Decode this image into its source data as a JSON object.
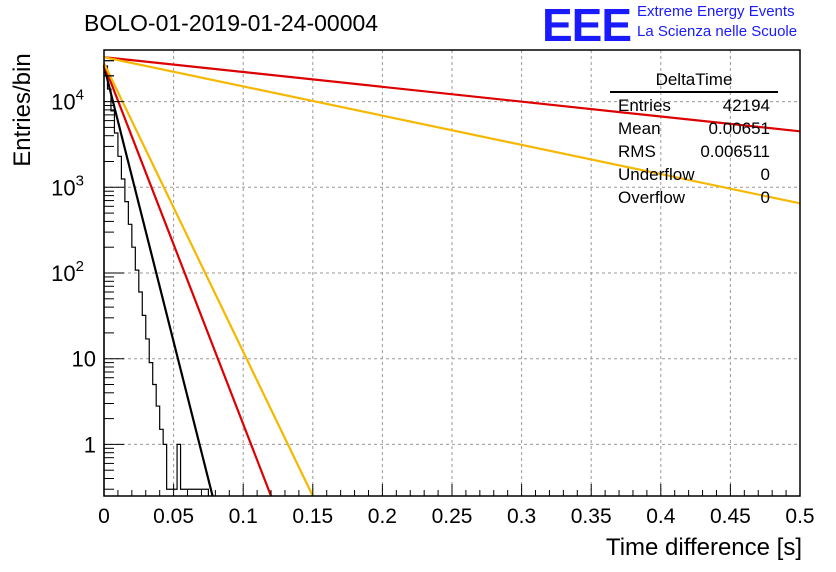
{
  "header": {
    "title": "BOLO-01-2019-01-24-00004",
    "logo_text": "EEE",
    "logo_line1": "Extreme Energy Events",
    "logo_line2": "La Scienza nelle Scuole"
  },
  "stats_box": {
    "title": "DeltaTime",
    "rows": [
      {
        "label": "Entries",
        "value": "42194"
      },
      {
        "label": "Mean",
        "value": "0.00651"
      },
      {
        "label": "RMS",
        "value": "0.006511"
      },
      {
        "label": "Underflow",
        "value": "0"
      },
      {
        "label": "Overflow",
        "value": "0"
      }
    ]
  },
  "chart_data": {
    "type": "line",
    "xlabel": "Time difference [s]",
    "ylabel": "Entries/bin",
    "xlim": [
      0,
      0.5
    ],
    "ylim": [
      0.25,
      40000
    ],
    "yscale": "log",
    "grid": true,
    "x_ticks": [
      "0",
      "0.05",
      "0.1",
      "0.15",
      "0.2",
      "0.25",
      "0.3",
      "0.35",
      "0.4",
      "0.45",
      "0.5"
    ],
    "y_ticks": [
      "1",
      "10",
      "10^2",
      "10^3",
      "10^4"
    ],
    "histogram": {
      "color": "#000000",
      "bin_width": 0.0025,
      "values": [
        26000,
        14000,
        7800,
        4300,
        2300,
        1250,
        680,
        370,
        200,
        108,
        60,
        32,
        17,
        9,
        5,
        2.8,
        1.5,
        1,
        0.3,
        0.3,
        0.3,
        1,
        0.3,
        0.3,
        0.3,
        0.3,
        0.3,
        0.3,
        0.3,
        0.3
      ]
    },
    "series": [
      {
        "color": "#000000",
        "x": [
          0.0,
          0.078
        ],
        "y": [
          26000,
          0.25
        ]
      },
      {
        "color": "#dd0000",
        "x": [
          0.0,
          0.12
        ],
        "y": [
          27000,
          0.25
        ]
      },
      {
        "color": "#f5b800",
        "x": [
          0.0,
          0.15
        ],
        "y": [
          28000,
          0.25
        ]
      },
      {
        "color": "#dd0000",
        "x": [
          0.0,
          0.5
        ],
        "y": [
          33000,
          4500
        ]
      },
      {
        "color": "#f5b800",
        "x": [
          0.0,
          0.5
        ],
        "y": [
          33000,
          650
        ]
      }
    ]
  }
}
